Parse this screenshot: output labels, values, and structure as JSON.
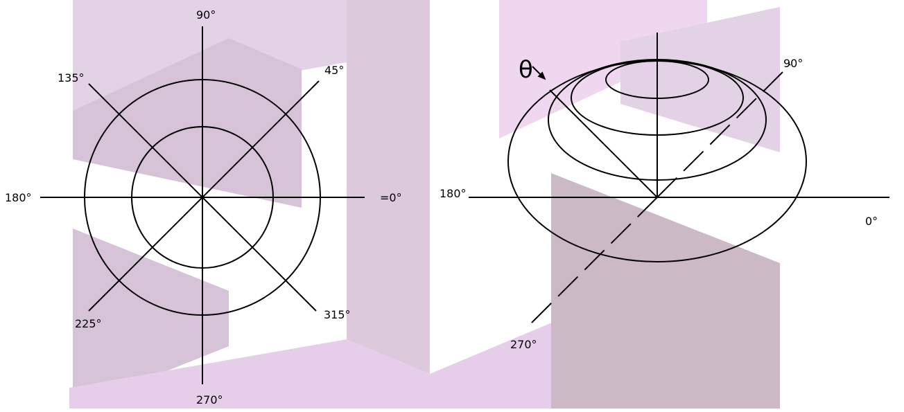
{
  "colors": {
    "line": "#000000",
    "background": "#ffffff",
    "watermark_light": "#e3d2e6",
    "watermark_mid": "#d7c3d8",
    "watermark_dark": "#cbb9c6",
    "watermark_pink": "#e8c6ea"
  },
  "polar_plot": {
    "labels": {
      "deg_0": "=0°",
      "deg_45": "45°",
      "deg_90": "90°",
      "deg_135": "135°",
      "deg_180": "180°",
      "deg_225": "225°",
      "deg_270": "270°",
      "deg_315": "315°"
    }
  },
  "pattern_3d": {
    "labels": {
      "theta": "θ",
      "deg_0": "0°",
      "deg_90": "90°",
      "deg_180": "180°",
      "deg_270": "270°"
    }
  }
}
